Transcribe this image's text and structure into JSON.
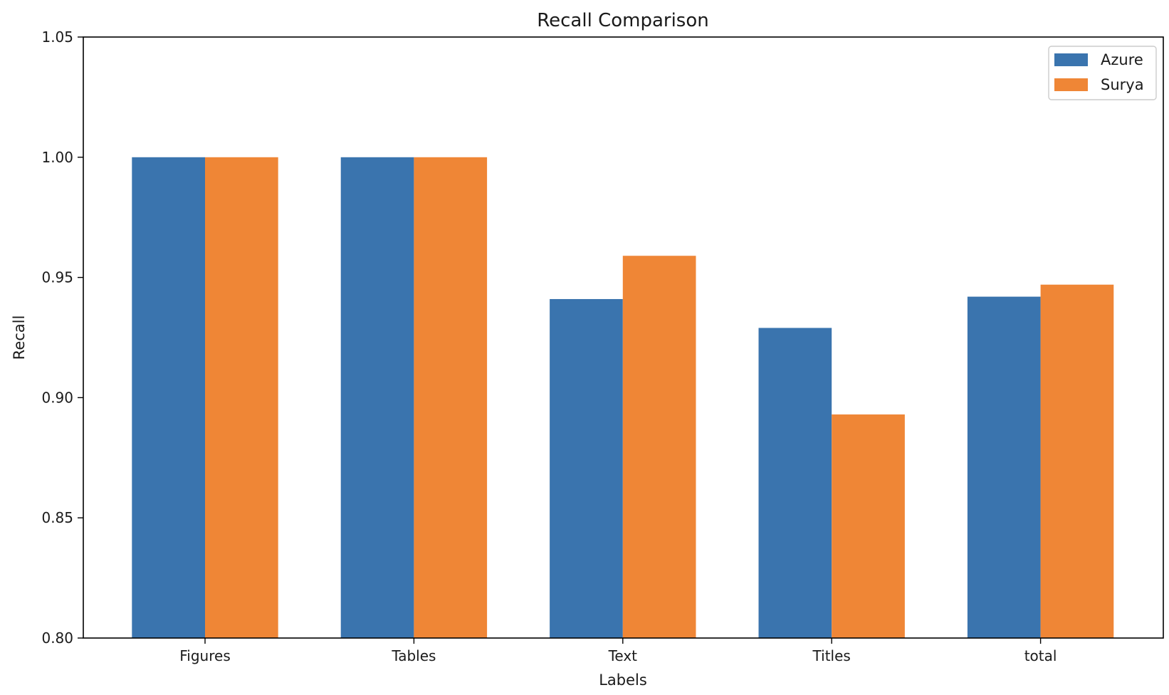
{
  "chart_data": {
    "type": "bar",
    "title": "Recall Comparison",
    "xlabel": "Labels",
    "ylabel": "Recall",
    "categories": [
      "Figures",
      "Tables",
      "Text",
      "Titles",
      "total"
    ],
    "series": [
      {
        "name": "Azure",
        "color": "#3a74ae",
        "values": [
          1.0,
          1.0,
          0.941,
          0.929,
          0.942
        ]
      },
      {
        "name": "Surya",
        "color": "#ef8636",
        "values": [
          1.0,
          1.0,
          0.959,
          0.893,
          0.947
        ]
      }
    ],
    "ylim": [
      0.8,
      1.05
    ],
    "yticks": [
      "0.80",
      "0.85",
      "0.90",
      "0.95",
      "1.00",
      "1.05"
    ],
    "grid": false,
    "legend": "top-right"
  }
}
